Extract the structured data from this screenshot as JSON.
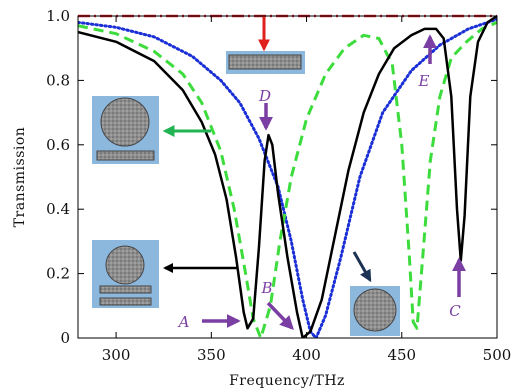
{
  "chart_data": {
    "type": "line",
    "title": "",
    "xlabel": "Frequency/THz",
    "ylabel": "Transmission",
    "xlim": [
      280,
      500
    ],
    "ylim": [
      0,
      1.0
    ],
    "x_ticks": [
      300,
      350,
      400,
      450,
      500
    ],
    "y_ticks": [
      0,
      0.2,
      0.4,
      0.6,
      0.8,
      1.0
    ],
    "x_tick_labels": [
      "300",
      "350",
      "400",
      "450",
      "500"
    ],
    "y_tick_labels": [
      "0",
      "0.2",
      "0.4",
      "0.6",
      "0.8",
      "1.0"
    ],
    "grid": false,
    "series": [
      {
        "style": "dash-dot",
        "color": "#d0212a",
        "points": [
          [
            280,
            1.0
          ],
          [
            500,
            1.0
          ]
        ]
      },
      {
        "style": "dotted",
        "color": "#1a2fd6",
        "points": [
          [
            280,
            0.98
          ],
          [
            300,
            0.965
          ],
          [
            320,
            0.935
          ],
          [
            340,
            0.875
          ],
          [
            355,
            0.8
          ],
          [
            365,
            0.73
          ],
          [
            375,
            0.62
          ],
          [
            385,
            0.47
          ],
          [
            392,
            0.3
          ],
          [
            398,
            0.12
          ],
          [
            402,
            0.02
          ],
          [
            405,
            0.0
          ],
          [
            410,
            0.07
          ],
          [
            418,
            0.25
          ],
          [
            428,
            0.5
          ],
          [
            440,
            0.7
          ],
          [
            455,
            0.83
          ],
          [
            470,
            0.91
          ],
          [
            485,
            0.96
          ],
          [
            500,
            0.99
          ]
        ]
      },
      {
        "style": "dashed",
        "color": "#3ddc3d",
        "points": [
          [
            280,
            0.97
          ],
          [
            300,
            0.945
          ],
          [
            320,
            0.89
          ],
          [
            335,
            0.82
          ],
          [
            345,
            0.73
          ],
          [
            355,
            0.58
          ],
          [
            362,
            0.4
          ],
          [
            368,
            0.2
          ],
          [
            372,
            0.06
          ],
          [
            376,
            0.0
          ],
          [
            381,
            0.1
          ],
          [
            386,
            0.3
          ],
          [
            392,
            0.5
          ],
          [
            400,
            0.68
          ],
          [
            410,
            0.82
          ],
          [
            420,
            0.9
          ],
          [
            430,
            0.94
          ],
          [
            438,
            0.93
          ],
          [
            445,
            0.85
          ],
          [
            450,
            0.6
          ],
          [
            454,
            0.25
          ],
          [
            456,
            0.05
          ],
          [
            458,
            0.03
          ],
          [
            461,
            0.25
          ],
          [
            465,
            0.55
          ],
          [
            470,
            0.75
          ],
          [
            476,
            0.87
          ],
          [
            484,
            0.92
          ],
          [
            492,
            0.96
          ],
          [
            500,
            0.98
          ]
        ]
      },
      {
        "style": "solid",
        "color": "#000000",
        "points": [
          [
            280,
            0.95
          ],
          [
            300,
            0.92
          ],
          [
            320,
            0.86
          ],
          [
            335,
            0.77
          ],
          [
            345,
            0.67
          ],
          [
            352,
            0.57
          ],
          [
            358,
            0.43
          ],
          [
            363,
            0.25
          ],
          [
            367,
            0.08
          ],
          [
            369,
            0.03
          ],
          [
            372,
            0.06
          ],
          [
            375,
            0.28
          ],
          [
            378,
            0.55
          ],
          [
            380,
            0.63
          ],
          [
            382,
            0.6
          ],
          [
            385,
            0.45
          ],
          [
            390,
            0.25
          ],
          [
            395,
            0.08
          ],
          [
            398,
            0.0
          ],
          [
            402,
            0.02
          ],
          [
            408,
            0.12
          ],
          [
            415,
            0.32
          ],
          [
            422,
            0.52
          ],
          [
            430,
            0.7
          ],
          [
            438,
            0.82
          ],
          [
            446,
            0.9
          ],
          [
            455,
            0.94
          ],
          [
            462,
            0.96
          ],
          [
            468,
            0.96
          ],
          [
            472,
            0.93
          ],
          [
            476,
            0.75
          ],
          [
            479,
            0.4
          ],
          [
            481,
            0.24
          ],
          [
            483,
            0.38
          ],
          [
            486,
            0.75
          ],
          [
            490,
            0.92
          ],
          [
            495,
            0.98
          ],
          [
            500,
            1.0
          ]
        ]
      }
    ],
    "annotations": [
      {
        "label": "A",
        "x": 369,
        "y": 0.03
      },
      {
        "label": "B",
        "x": 395,
        "y": 0.01
      },
      {
        "label": "C",
        "x": 481,
        "y": 0.24
      },
      {
        "label": "D",
        "x": 380,
        "y": 0.63
      },
      {
        "label": "E",
        "x": 466,
        "y": 0.96
      }
    ],
    "insets": [
      {
        "name": "single-bar-structure",
        "pointing_to_series": "red dash-dot"
      },
      {
        "name": "disk-over-bar-structure",
        "pointing_to_series": "green dashed"
      },
      {
        "name": "disk-over-two-bars-structure",
        "pointing_to_series": "black solid"
      },
      {
        "name": "disk-only-structure",
        "pointing_to_series": "blue dotted"
      }
    ]
  }
}
